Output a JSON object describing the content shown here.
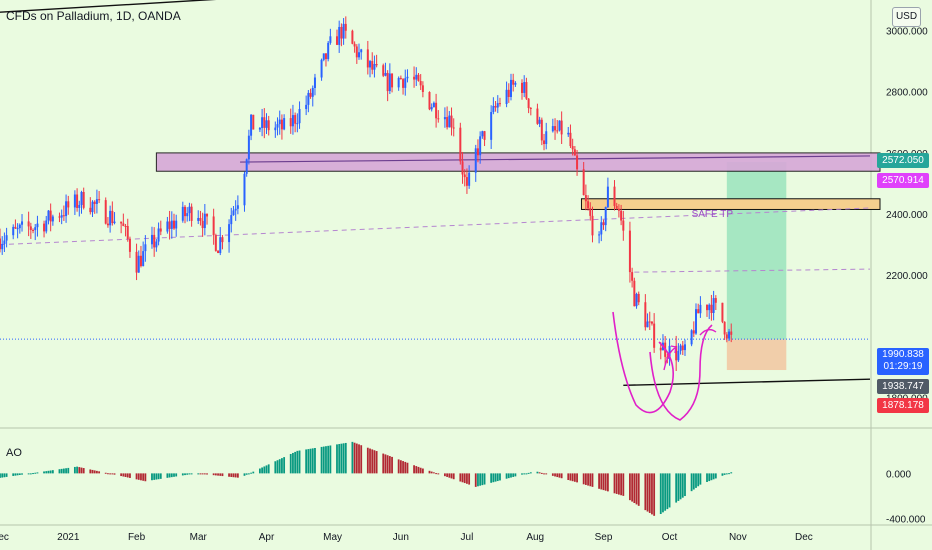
{
  "header": {
    "title": "CFDs on Palladium, 1D, OANDA",
    "currency_button": "USD"
  },
  "indicator": {
    "label": "AO"
  },
  "price_axis": {
    "ticks": [
      "3000.000",
      "2800.000",
      "2600.000",
      "2400.000",
      "2200.000",
      "1800.000"
    ]
  },
  "ao_axis": {
    "ticks": [
      "0.000",
      "-400.000"
    ]
  },
  "time_axis": {
    "ticks": [
      "Dec",
      "2021",
      "Feb",
      "Mar",
      "Apr",
      "May",
      "Jun",
      "Jul",
      "Aug",
      "Sep",
      "Oct",
      "Nov",
      "Dec"
    ]
  },
  "price_tags": [
    {
      "value": "2572.050",
      "color": "#26a69a"
    },
    {
      "value": "2570.914",
      "color": "#e040fb"
    },
    {
      "value": "1990.838",
      "subtext": "01:29:19",
      "color": "#2962ff"
    },
    {
      "value": "1938.747",
      "color": "#505a66"
    },
    {
      "value": "1878.178",
      "color": "#f23645"
    }
  ],
  "annotations": {
    "safe_tp": "SAFE TP"
  },
  "colors": {
    "up": "#2962ff",
    "down": "#f23645",
    "ao_up": "#089981",
    "ao_down": "#b22833",
    "background": "#eafbe0",
    "resistance_zone": "#d7a7d8",
    "supply_zone": "#f5cf8e",
    "target_zone": "#8fe0b8",
    "stop_zone": "#f2c9a4"
  },
  "chart_data": {
    "type": "candlestick",
    "title": "CFDs on Palladium, 1D, OANDA",
    "ylim": [
      1720,
      3100
    ],
    "x_range": [
      "2020-12-01",
      "2021-12-31"
    ],
    "key_points": [
      {
        "date": "2020-12-01",
        "price": 2320
      },
      {
        "date": "2020-12-20",
        "price": 2370
      },
      {
        "date": "2021-01-08",
        "price": 2450
      },
      {
        "date": "2021-01-25",
        "price": 2370
      },
      {
        "date": "2021-02-01",
        "price": 2240
      },
      {
        "date": "2021-02-15",
        "price": 2360
      },
      {
        "date": "2021-02-28",
        "price": 2420
      },
      {
        "date": "2021-03-10",
        "price": 2300
      },
      {
        "date": "2021-03-20",
        "price": 2470
      },
      {
        "date": "2021-03-25",
        "price": 2690
      },
      {
        "date": "2021-04-10",
        "price": 2680
      },
      {
        "date": "2021-04-20",
        "price": 2770
      },
      {
        "date": "2021-04-30",
        "price": 2950
      },
      {
        "date": "2021-05-05",
        "price": 3000
      },
      {
        "date": "2021-05-15",
        "price": 2900
      },
      {
        "date": "2021-05-25",
        "price": 2830
      },
      {
        "date": "2021-06-05",
        "price": 2850
      },
      {
        "date": "2021-06-15",
        "price": 2760
      },
      {
        "date": "2021-06-25",
        "price": 2700
      },
      {
        "date": "2021-07-01",
        "price": 2470
      },
      {
        "date": "2021-07-05",
        "price": 2600
      },
      {
        "date": "2021-07-15",
        "price": 2760
      },
      {
        "date": "2021-07-25",
        "price": 2840
      },
      {
        "date": "2021-08-05",
        "price": 2650
      },
      {
        "date": "2021-08-15",
        "price": 2680
      },
      {
        "date": "2021-08-22",
        "price": 2470
      },
      {
        "date": "2021-08-30",
        "price": 2300
      },
      {
        "date": "2021-09-03",
        "price": 2470
      },
      {
        "date": "2021-09-08",
        "price": 2420
      },
      {
        "date": "2021-09-15",
        "price": 2130
      },
      {
        "date": "2021-09-25",
        "price": 1980
      },
      {
        "date": "2021-10-01",
        "price": 1950
      },
      {
        "date": "2021-10-08",
        "price": 1940
      },
      {
        "date": "2021-10-15",
        "price": 2100
      },
      {
        "date": "2021-10-20",
        "price": 2110
      },
      {
        "date": "2021-10-25",
        "price": 2050
      },
      {
        "date": "2021-10-29",
        "price": 1990
      }
    ],
    "ao_key_points": [
      {
        "date": "2020-12-01",
        "value": -40
      },
      {
        "date": "2021-01-05",
        "value": 60
      },
      {
        "date": "2021-02-05",
        "value": -70
      },
      {
        "date": "2021-02-28",
        "value": 0
      },
      {
        "date": "2021-03-20",
        "value": -40
      },
      {
        "date": "2021-04-15",
        "value": 200
      },
      {
        "date": "2021-05-10",
        "value": 280
      },
      {
        "date": "2021-06-10",
        "value": 50
      },
      {
        "date": "2021-07-05",
        "value": -120
      },
      {
        "date": "2021-08-01",
        "value": 20
      },
      {
        "date": "2021-08-20",
        "value": -80
      },
      {
        "date": "2021-09-10",
        "value": -200
      },
      {
        "date": "2021-09-25",
        "value": -390
      },
      {
        "date": "2021-10-15",
        "value": -100
      },
      {
        "date": "2021-10-29",
        "value": 10
      }
    ],
    "ao_ylim": [
      -450,
      350
    ],
    "levels": [
      {
        "name": "top trendline",
        "from": [
          "2020-12-01",
          3060
        ],
        "to": [
          "2021-12-31",
          3230
        ]
      },
      {
        "name": "bottom trendline",
        "from": [
          "2021-09-10",
          1840
        ],
        "to": [
          "2021-12-31",
          1860
        ]
      },
      {
        "name": "resistance zone",
        "from_date": "2021-02-10",
        "price_low": 2540,
        "price_high": 2600
      },
      {
        "name": "supply zone",
        "from_date": "2021-08-22",
        "price_low": 2415,
        "price_high": 2450
      },
      {
        "name": "target zone",
        "from_date": "2021-10-27",
        "to_date": "2021-11-23",
        "price_low": 1990,
        "price_high": 2570
      },
      {
        "name": "stop zone",
        "from_date": "2021-10-27",
        "to_date": "2021-11-23",
        "price_low": 1890,
        "price_high": 1990
      },
      {
        "name": "last price",
        "price": 1990.838
      }
    ]
  }
}
